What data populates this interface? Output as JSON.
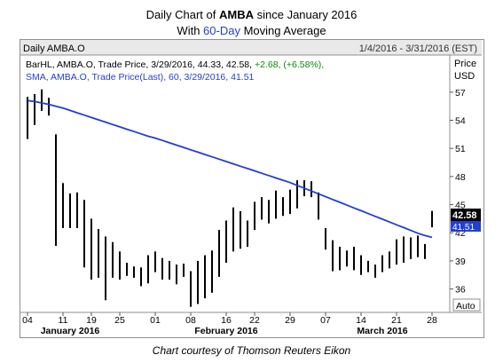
{
  "header": {
    "title_prefix": "Daily Chart of ",
    "title_ticker": "AMBA",
    "title_suffix": " since January 2016",
    "subtitle_prefix": "With ",
    "subtitle_highlight": "60-Day",
    "subtitle_suffix": " Moving Average"
  },
  "panel": {
    "name": "Daily AMBA.O",
    "range": "1/4/2016 - 3/31/2016 (EST)",
    "price_label": "Price",
    "currency_label": "USD",
    "auto_label": "Auto",
    "legend_bar_prefix": "BarHL, AMBA.O, Trade Price, 3/29/2016, 44.33, 42.58, ",
    "legend_bar_change": "+2.68, (+6.58%),",
    "legend_sma": "SMA, AMBA.O, Trade Price(Last), 60, 3/29/2016, 41.51",
    "last_price_tag": "42.58",
    "sma_tag": "41.51"
  },
  "caption": "Chart courtesy of Thomson Reuters Eikon",
  "colors": {
    "bars": "#000000",
    "sma": "#1f3fd6",
    "change_positive": "#0a8a0a",
    "price_tag_bg": "#000000",
    "sma_tag_bg": "#1f3fd6"
  },
  "chart_data": {
    "type": "bar",
    "ylim": [
      33.5,
      58.5
    ],
    "yticks": [
      36,
      39,
      42,
      45,
      48,
      51,
      54,
      57
    ],
    "xticks": [
      {
        "label": "04",
        "index": 0
      },
      {
        "label": "11",
        "index": 5
      },
      {
        "label": "19",
        "index": 9
      },
      {
        "label": "25",
        "index": 13
      },
      {
        "label": "01",
        "index": 18
      },
      {
        "label": "08",
        "index": 23
      },
      {
        "label": "16",
        "index": 28
      },
      {
        "label": "22",
        "index": 32
      },
      {
        "label": "29",
        "index": 37
      },
      {
        "label": "07",
        "index": 42
      },
      {
        "label": "14",
        "index": 47
      },
      {
        "label": "21",
        "index": 52
      },
      {
        "label": "28",
        "index": 57
      }
    ],
    "months": [
      {
        "label": "January 2016",
        "index": 6
      },
      {
        "label": "February 2016",
        "index": 28
      },
      {
        "label": "March 2016",
        "index": 50
      }
    ],
    "series": [
      {
        "name": "BarHL",
        "style": "high-low",
        "high": [
          56.5,
          56.8,
          57.3,
          56.4,
          52.5,
          47.3,
          46.2,
          46.3,
          45.5,
          43.5,
          42.4,
          41.6,
          41.0,
          40.0,
          38.8,
          38.4,
          38.3,
          39.6,
          40.0,
          39.3,
          39.0,
          38.6,
          38.7,
          37.9,
          39.0,
          39.6,
          40.1,
          42.3,
          43.3,
          44.7,
          44.3,
          43.3,
          45.3,
          45.8,
          45.5,
          46.5,
          45.8,
          46.6,
          47.6,
          47.6,
          47.5,
          46.3,
          42.5,
          41.2,
          40.5,
          40.1,
          40.5,
          39.6,
          39.0,
          38.6,
          39.6,
          40.0,
          41.3,
          41.6,
          41.5,
          41.7,
          40.8,
          44.33
        ],
        "low": [
          52.0,
          53.5,
          55.0,
          54.5,
          40.6,
          42.5,
          42.5,
          42.5,
          38.3,
          37.0,
          37.2,
          34.8,
          37.2,
          37.0,
          37.4,
          37.2,
          36.3,
          36.6,
          37.8,
          37.0,
          37.0,
          36.5,
          37.3,
          34.1,
          34.4,
          35.0,
          35.6,
          37.3,
          38.8,
          40.0,
          40.3,
          40.5,
          42.3,
          43.4,
          43.0,
          43.5,
          43.8,
          44.0,
          44.6,
          45.9,
          45.8,
          43.4,
          40.2,
          37.9,
          38.0,
          38.4,
          38.0,
          37.5,
          37.8,
          37.2,
          37.8,
          38.2,
          38.6,
          38.8,
          39.2,
          39.4,
          39.2,
          42.58
        ]
      },
      {
        "name": "SMA 60",
        "style": "line",
        "values": [
          56.1,
          56.0,
          55.85,
          55.7,
          55.5,
          55.3,
          55.05,
          54.8,
          54.55,
          54.3,
          54.05,
          53.8,
          53.55,
          53.3,
          53.05,
          52.8,
          52.55,
          52.3,
          52.1,
          51.85,
          51.6,
          51.35,
          51.1,
          50.85,
          50.6,
          50.35,
          50.1,
          49.85,
          49.6,
          49.35,
          49.1,
          48.85,
          48.6,
          48.35,
          48.1,
          47.85,
          47.6,
          47.35,
          47.05,
          46.75,
          46.45,
          46.15,
          45.85,
          45.55,
          45.25,
          44.95,
          44.65,
          44.35,
          44.05,
          43.75,
          43.45,
          43.15,
          42.85,
          42.55,
          42.25,
          41.95,
          41.7,
          41.51
        ]
      }
    ]
  }
}
